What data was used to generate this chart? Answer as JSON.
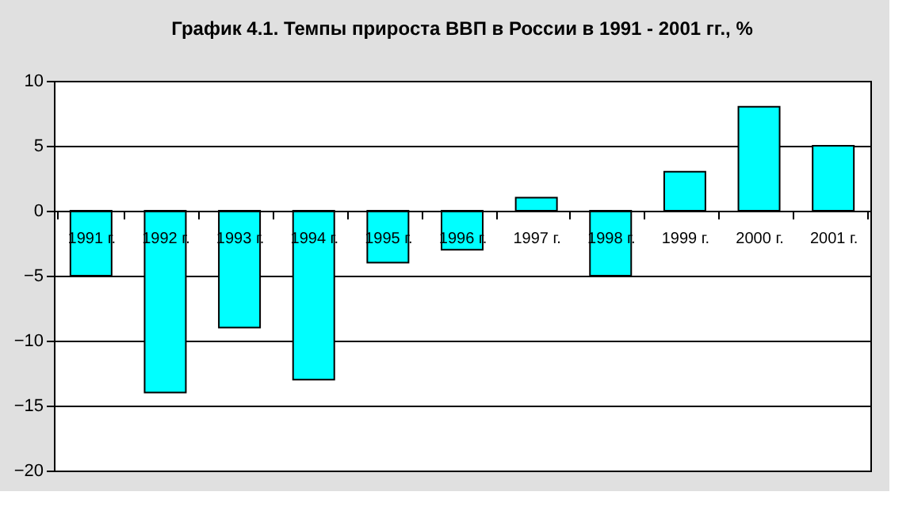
{
  "chart_data": {
    "type": "bar",
    "title": "График 4.1. Темпы прироста ВВП в России в 1991 - 2001 гг., %",
    "categories": [
      "1991 г.",
      "1992 г.",
      "1993 г.",
      "1994 г.",
      "1995 г.",
      "1996 г.",
      "1997 г.",
      "1998 г.",
      "1999 г.",
      "2000 г.",
      "2001 г."
    ],
    "values": [
      -5,
      -14,
      -9,
      -13,
      -4,
      -3,
      1,
      -5,
      3,
      8,
      5
    ],
    "color": "#00ffff",
    "ylim": [
      -20,
      10
    ],
    "yticks": [
      -20,
      -15,
      -10,
      -5,
      0,
      5,
      10
    ],
    "grid": "y"
  }
}
